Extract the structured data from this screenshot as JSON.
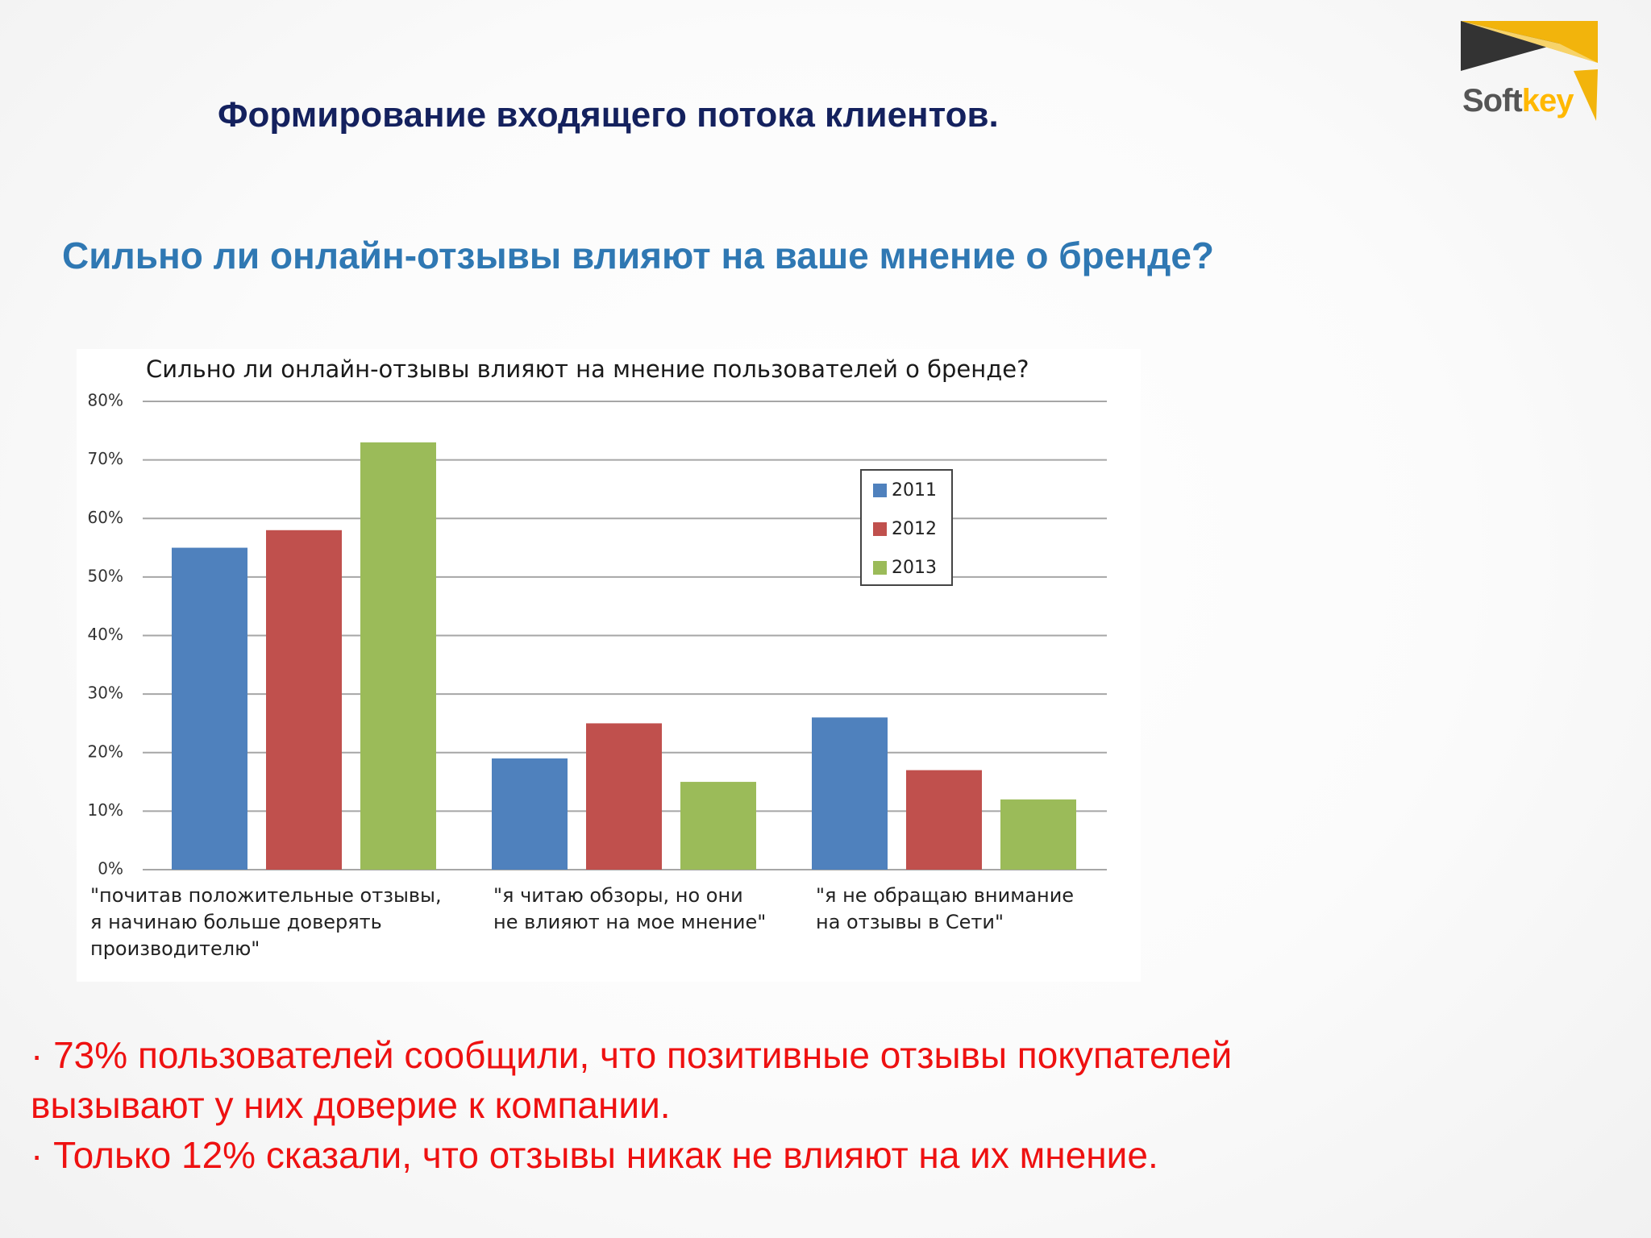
{
  "slide": {
    "title": "Формирование входящего потока клиентов.",
    "subtitle": "Сильно ли онлайн-отзывы влияют на ваше мнение о бренде?"
  },
  "logo": {
    "text_part1": "Soft",
    "text_part2": "key",
    "colors": {
      "triangle_dark": "#333333",
      "triangle_gold": "#f2b40c",
      "text_dark": "#555555",
      "text_gold": "#ffb800"
    }
  },
  "chart_data": {
    "type": "bar",
    "title": "Сильно ли онлайн-отзывы влияют на мнение пользователей о бренде?",
    "xlabel": "",
    "ylabel": "",
    "ylim": [
      0,
      80
    ],
    "y_ticks": [
      "0%",
      "10%",
      "20%",
      "30%",
      "40%",
      "50%",
      "60%",
      "70%",
      "80%"
    ],
    "y_tick_values": [
      0,
      10,
      20,
      30,
      40,
      50,
      60,
      70,
      80
    ],
    "grid": true,
    "legend_position": "top-right",
    "categories": [
      [
        "\"почитав положительные отзывы,",
        "я начинаю больше доверять",
        "производителю\""
      ],
      [
        "\"я читаю обзоры, но они",
        "не влияют на мое мнение\""
      ],
      [
        "\"я не обращаю внимание",
        "на отзывы в Сети\""
      ]
    ],
    "series": [
      {
        "name": "2011",
        "color": "#4f81bd",
        "values": [
          55,
          19,
          26
        ]
      },
      {
        "name": "2012",
        "color": "#c0504d",
        "values": [
          58,
          25,
          17
        ]
      },
      {
        "name": "2013",
        "color": "#9bbb59",
        "values": [
          73,
          15,
          12
        ]
      }
    ]
  },
  "bullets": [
    "· 73% пользователей сообщили, что позитивные отзывы покупателей",
    "вызывают у них доверие к компании.",
    "· Только 12% сказали, что отзывы никак не влияют на их мнение."
  ],
  "colors": {
    "title": "#14215e",
    "subtitle": "#2f78b3",
    "bullets": "#ee1111",
    "gridline": "#a6a6a6"
  }
}
